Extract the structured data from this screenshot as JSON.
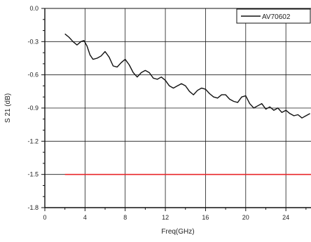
{
  "chart_data": {
    "type": "line",
    "title": "",
    "xlabel": "Freq(GHz)",
    "ylabel": "S 21 (dB)",
    "xlim": [
      0,
      26.5
    ],
    "ylim": [
      -1.8,
      0.0
    ],
    "xticks": [
      0,
      4,
      8,
      12,
      16,
      20,
      24
    ],
    "yticks": [
      0.0,
      -0.3,
      -0.6,
      -0.9,
      -1.2,
      -1.5,
      -1.8
    ],
    "xtick_labels": [
      "0",
      "4",
      "8",
      "12",
      "16",
      "20",
      "24"
    ],
    "ytick_labels": [
      "0.0",
      "-0.3",
      "-0.6",
      "-0.9",
      "-1.2",
      "-1.5",
      "-1.8"
    ],
    "grid": true,
    "legend_position": "top-right",
    "series": [
      {
        "name": "AV70602",
        "color": "#111111",
        "x": [
          2.0,
          2.4,
          2.8,
          3.2,
          3.6,
          3.9,
          4.2,
          4.5,
          4.8,
          5.2,
          5.6,
          6.0,
          6.4,
          6.8,
          7.2,
          7.6,
          8.0,
          8.4,
          8.8,
          9.2,
          9.6,
          10.0,
          10.4,
          10.8,
          11.2,
          11.6,
          12.0,
          12.4,
          12.8,
          13.2,
          13.6,
          14.0,
          14.4,
          14.8,
          15.2,
          15.6,
          16.0,
          16.4,
          16.8,
          17.2,
          17.6,
          18.0,
          18.4,
          18.8,
          19.2,
          19.6,
          20.0,
          20.4,
          20.8,
          21.2,
          21.6,
          22.0,
          22.4,
          22.8,
          23.2,
          23.6,
          24.0,
          24.4,
          24.8,
          25.2,
          25.6,
          26.0,
          26.4
        ],
        "y": [
          -0.23,
          -0.26,
          -0.3,
          -0.33,
          -0.3,
          -0.29,
          -0.34,
          -0.42,
          -0.46,
          -0.45,
          -0.43,
          -0.39,
          -0.44,
          -0.52,
          -0.53,
          -0.49,
          -0.46,
          -0.51,
          -0.58,
          -0.62,
          -0.58,
          -0.56,
          -0.58,
          -0.63,
          -0.64,
          -0.62,
          -0.65,
          -0.7,
          -0.72,
          -0.7,
          -0.68,
          -0.7,
          -0.75,
          -0.78,
          -0.74,
          -0.72,
          -0.73,
          -0.77,
          -0.8,
          -0.81,
          -0.78,
          -0.78,
          -0.82,
          -0.84,
          -0.85,
          -0.8,
          -0.79,
          -0.86,
          -0.9,
          -0.88,
          -0.86,
          -0.91,
          -0.89,
          -0.92,
          -0.9,
          -0.94,
          -0.92,
          -0.95,
          -0.97,
          -0.96,
          -0.99,
          -0.97,
          -0.95
        ]
      },
      {
        "name": "",
        "color": "#e8272b",
        "x": [
          2.0,
          26.5
        ],
        "y": [
          -1.5,
          -1.5
        ]
      }
    ]
  }
}
